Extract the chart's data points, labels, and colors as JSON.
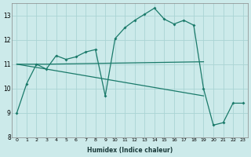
{
  "xlabel": "Humidex (Indice chaleur)",
  "bg_color": "#cceaea",
  "grid_color": "#aad4d4",
  "line_color": "#1a7a6a",
  "xlim": [
    -0.5,
    23.5
  ],
  "ylim": [
    8,
    13.5
  ],
  "yticks": [
    8,
    9,
    10,
    11,
    12,
    13
  ],
  "xticks": [
    0,
    1,
    2,
    3,
    4,
    5,
    6,
    7,
    8,
    9,
    10,
    11,
    12,
    13,
    14,
    15,
    16,
    17,
    18,
    19,
    20,
    21,
    22,
    23
  ],
  "series1_x": [
    0,
    1,
    2,
    3,
    4,
    5,
    6,
    7,
    8,
    9,
    10,
    11,
    12,
    13,
    14,
    15,
    16,
    17,
    18,
    19,
    20,
    21,
    22,
    23
  ],
  "series1_y": [
    9.0,
    10.2,
    11.0,
    10.8,
    11.35,
    11.2,
    11.3,
    11.5,
    11.6,
    9.7,
    12.05,
    12.5,
    12.8,
    13.05,
    13.3,
    12.85,
    12.65,
    12.8,
    12.6,
    10.0,
    8.5,
    8.6,
    9.4,
    9.4
  ],
  "series2_x": [
    0,
    3,
    19
  ],
  "series2_y": [
    11.0,
    11.0,
    11.1
  ],
  "series3_x": [
    0,
    3,
    19
  ],
  "series3_y": [
    11.0,
    10.8,
    9.7
  ]
}
